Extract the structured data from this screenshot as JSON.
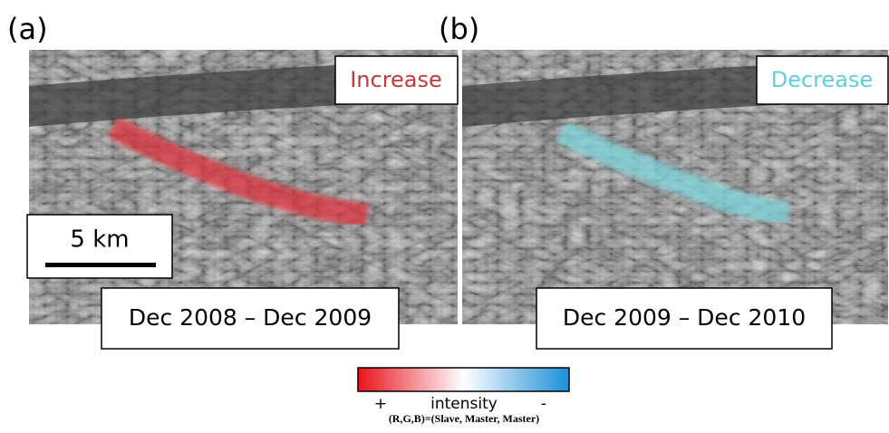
{
  "panels": [
    {
      "label": "(a)",
      "change": "Increase",
      "dates": "Dec 2008 – Dec 2009",
      "scale": "5 km"
    },
    {
      "label": "(b)",
      "change": "Decrease",
      "dates": "Dec 2009 – Dec 2010"
    }
  ],
  "colorbar": {
    "plus": "+",
    "title": "intensity",
    "minus": "-",
    "caption": "(R,G,B)=(Slave, Master, Master)"
  }
}
